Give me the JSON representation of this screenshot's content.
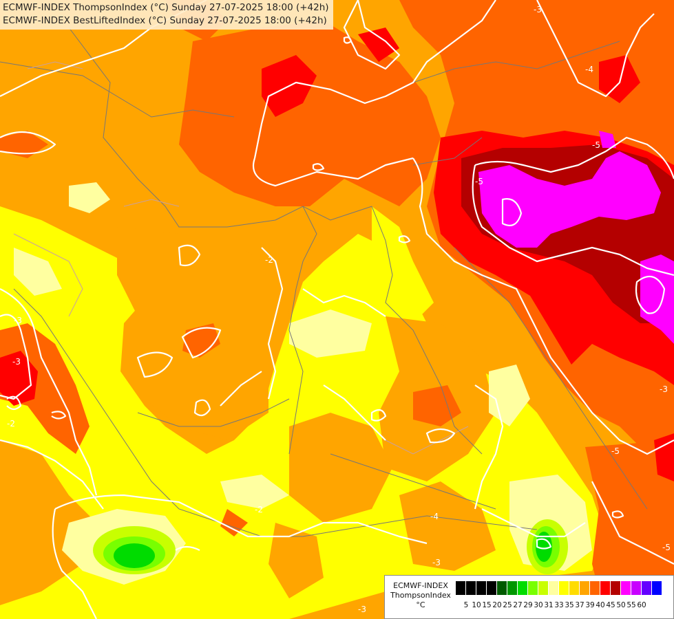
{
  "header": {
    "line1": "ECMWF-INDEX ThompsonIndex (°C) Sunday 27-07-2025 18:00 (+42h)",
    "line2": "ECMWF-INDEX BestLiftedIndex (°C) Sunday 27-07-2025 18:00 (+42h)"
  },
  "legend": {
    "title_line1": "ECMWF-INDEX",
    "title_line2": "ThompsonIndex",
    "title_line3": "°C",
    "colors": [
      "#000000",
      "#000000",
      "#000000",
      "#000000",
      "#005a00",
      "#009600",
      "#00dc00",
      "#78ff00",
      "#c8ff00",
      "#ffffa0",
      "#ffff00",
      "#ffdc00",
      "#ffa500",
      "#ff6400",
      "#ff0000",
      "#b40000",
      "#ff00ff",
      "#c800ff",
      "#6400ff",
      "#0000ff"
    ],
    "labels": [
      "5",
      "10",
      "15",
      "20",
      "25",
      "27",
      "29",
      "30",
      "31",
      "33",
      "35",
      "37",
      "39",
      "40",
      "45",
      "50",
      "55",
      "60"
    ]
  },
  "contour_labels": [
    "-3",
    "-3",
    "-4",
    "-5",
    "-5",
    "-2",
    "-2",
    "-3",
    "-3",
    "-2",
    "-4",
    "-5",
    "-5",
    "-3",
    "-3",
    "-5"
  ],
  "colors": {
    "yellow": "#ffff00",
    "pale_yellow": "#ffffa0",
    "orange": "#ffa500",
    "dark_orange": "#ff6400",
    "red": "#ff0000",
    "dark_red": "#b40000",
    "magenta": "#ff00ff",
    "lime": "#c8ff00",
    "light_green": "#78ff00",
    "green": "#00dc00",
    "contour": "#ffffff",
    "border": "#777777"
  }
}
